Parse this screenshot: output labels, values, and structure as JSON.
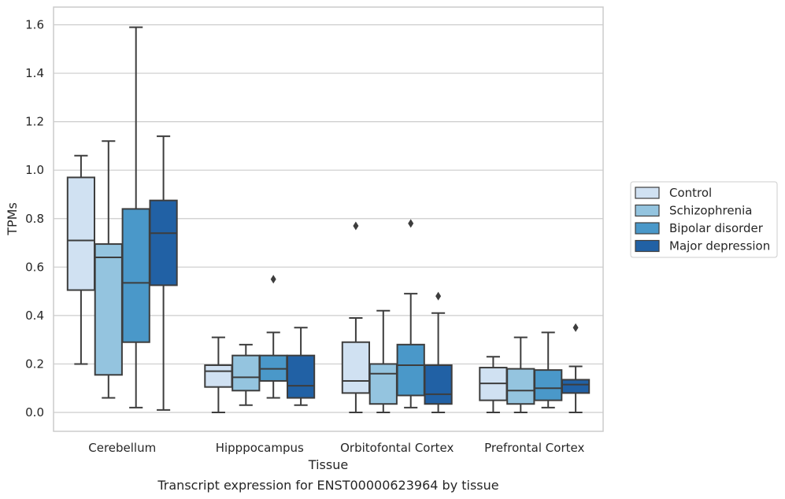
{
  "chart_data": {
    "type": "box",
    "xlabel": "Tissue",
    "ylabel": "TPMs",
    "caption": "Transcript expression for ENST00000623964 by tissue",
    "ylim": [
      -0.08,
      1.67
    ],
    "yticks": [
      "0.0",
      "0.2",
      "0.4",
      "0.6",
      "0.8",
      "1.0",
      "1.2",
      "1.4",
      "1.6"
    ],
    "grid": true,
    "legend_position": "right",
    "categories": [
      "Cerebellum",
      "Hipppocampus",
      "Orbitofontal Cortex",
      "Prefrontal Cortex"
    ],
    "series": [
      {
        "name": "Control",
        "color": "#d0e1f2",
        "boxes": [
          {
            "whislo": 0.2,
            "q1": 0.505,
            "med": 0.71,
            "q3": 0.97,
            "whishi": 1.06,
            "fliers": []
          },
          {
            "whislo": 0.0,
            "q1": 0.105,
            "med": 0.17,
            "q3": 0.195,
            "whishi": 0.31,
            "fliers": []
          },
          {
            "whislo": 0.0,
            "q1": 0.08,
            "med": 0.13,
            "q3": 0.29,
            "whishi": 0.39,
            "fliers": [
              0.77
            ]
          },
          {
            "whislo": 0.0,
            "q1": 0.05,
            "med": 0.12,
            "q3": 0.185,
            "whishi": 0.23,
            "fliers": []
          }
        ]
      },
      {
        "name": "Schizophrenia",
        "color": "#94c4df",
        "boxes": [
          {
            "whislo": 0.06,
            "q1": 0.155,
            "med": 0.64,
            "q3": 0.695,
            "whishi": 1.12,
            "fliers": []
          },
          {
            "whislo": 0.03,
            "q1": 0.09,
            "med": 0.145,
            "q3": 0.235,
            "whishi": 0.28,
            "fliers": []
          },
          {
            "whislo": 0.0,
            "q1": 0.035,
            "med": 0.16,
            "q3": 0.2,
            "whishi": 0.42,
            "fliers": []
          },
          {
            "whislo": 0.0,
            "q1": 0.035,
            "med": 0.09,
            "q3": 0.18,
            "whishi": 0.31,
            "fliers": []
          }
        ]
      },
      {
        "name": "Bipolar disorder",
        "color": "#4a98c9",
        "boxes": [
          {
            "whislo": 0.02,
            "q1": 0.29,
            "med": 0.535,
            "q3": 0.84,
            "whishi": 1.59,
            "fliers": []
          },
          {
            "whislo": 0.06,
            "q1": 0.13,
            "med": 0.18,
            "q3": 0.235,
            "whishi": 0.33,
            "fliers": [
              0.55
            ]
          },
          {
            "whislo": 0.02,
            "q1": 0.07,
            "med": 0.195,
            "q3": 0.28,
            "whishi": 0.49,
            "fliers": [
              0.78
            ]
          },
          {
            "whislo": 0.02,
            "q1": 0.05,
            "med": 0.1,
            "q3": 0.175,
            "whishi": 0.33,
            "fliers": []
          }
        ]
      },
      {
        "name": "Major depression",
        "color": "#2161a5",
        "boxes": [
          {
            "whislo": 0.01,
            "q1": 0.525,
            "med": 0.74,
            "q3": 0.875,
            "whishi": 1.14,
            "fliers": []
          },
          {
            "whislo": 0.03,
            "q1": 0.06,
            "med": 0.11,
            "q3": 0.235,
            "whishi": 0.35,
            "fliers": []
          },
          {
            "whislo": 0.0,
            "q1": 0.035,
            "med": 0.075,
            "q3": 0.195,
            "whishi": 0.41,
            "fliers": [
              0.48
            ]
          },
          {
            "whislo": 0.0,
            "q1": 0.08,
            "med": 0.115,
            "q3": 0.135,
            "whishi": 0.19,
            "fliers": [
              0.35
            ]
          }
        ]
      }
    ]
  }
}
